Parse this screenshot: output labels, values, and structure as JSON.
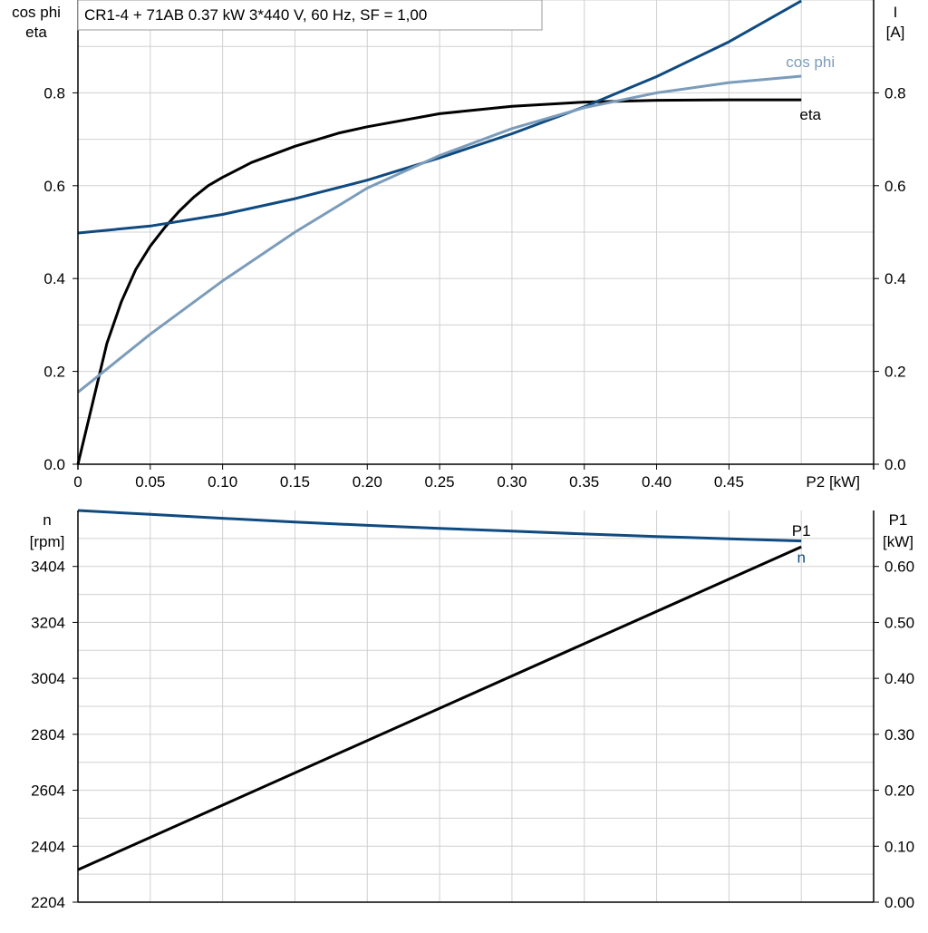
{
  "header": {
    "title": "CR1-4 + 71AB   0.37 kW   3*440 V, 60 Hz, SF = 1,00"
  },
  "colors": {
    "eta": "#000000",
    "current": "#0f4a80",
    "cos_phi": "#7b9cba",
    "speed": "#0f4a80",
    "p1": "#000000",
    "grid": "#d0d0d0",
    "axis": "#000000"
  },
  "chart_data": [
    {
      "type": "line",
      "title": "CR1-4 + 71AB   0.37 kW   3*440 V, 60 Hz, SF = 1,00",
      "xlabel": "P2 [kW]",
      "ylabel": "cos phi\neta",
      "y2label": "I\n[A]",
      "xlim": [
        0,
        0.55
      ],
      "ylim": [
        0,
        1.0
      ],
      "y2lim": [
        0,
        1.0
      ],
      "x_ticks": [
        "0",
        "0.05",
        "0.10",
        "0.15",
        "0.20",
        "0.25",
        "0.30",
        "0.35",
        "0.40",
        "0.45"
      ],
      "y_ticks": [
        "0.0",
        "0.2",
        "0.4",
        "0.6",
        "0.8"
      ],
      "y2_ticks": [
        "0.0",
        "0.2",
        "0.4",
        "0.6",
        "0.8"
      ],
      "grid": true,
      "series": [
        {
          "name": "eta",
          "axis": "left",
          "color": "#000000",
          "x": [
            0,
            0.01,
            0.02,
            0.03,
            0.04,
            0.05,
            0.06,
            0.07,
            0.08,
            0.09,
            0.1,
            0.12,
            0.15,
            0.18,
            0.2,
            0.25,
            0.3,
            0.35,
            0.4,
            0.45,
            0.5
          ],
          "y": [
            0.0,
            0.13,
            0.26,
            0.35,
            0.42,
            0.47,
            0.51,
            0.545,
            0.575,
            0.6,
            0.618,
            0.65,
            0.685,
            0.713,
            0.727,
            0.755,
            0.771,
            0.78,
            0.784,
            0.785,
            0.785
          ]
        },
        {
          "name": "I",
          "axis": "right",
          "color": "#0f4a80",
          "x": [
            0,
            0.05,
            0.1,
            0.15,
            0.2,
            0.25,
            0.3,
            0.35,
            0.4,
            0.45,
            0.5
          ],
          "y": [
            0.498,
            0.513,
            0.538,
            0.572,
            0.612,
            0.66,
            0.712,
            0.77,
            0.835,
            0.91,
            0.998
          ]
        },
        {
          "name": "cos phi",
          "axis": "left",
          "color": "#7b9cba",
          "x": [
            0,
            0.05,
            0.1,
            0.15,
            0.2,
            0.25,
            0.3,
            0.35,
            0.4,
            0.45,
            0.5
          ],
          "y": [
            0.155,
            0.28,
            0.395,
            0.5,
            0.595,
            0.665,
            0.723,
            0.768,
            0.8,
            0.822,
            0.836
          ]
        }
      ]
    },
    {
      "type": "line",
      "xlabel": "",
      "ylabel": "n\n[rpm]",
      "y2label": "P1\n[kW]",
      "xlim": [
        0,
        0.55
      ],
      "ylim": [
        2204,
        3604
      ],
      "y2lim": [
        0,
        0.7
      ],
      "y_ticks": [
        "3404",
        "3204",
        "3004",
        "2804",
        "2604",
        "2404",
        "2204"
      ],
      "y2_ticks": [
        "0.60",
        "0.50",
        "0.40",
        "0.30",
        "0.20",
        "0.10",
        "0.00"
      ],
      "grid": true,
      "series": [
        {
          "name": "n",
          "axis": "left",
          "color": "#0f4a80",
          "x": [
            0,
            0.05,
            0.1,
            0.15,
            0.2,
            0.25,
            0.3,
            0.35,
            0.4,
            0.45,
            0.5
          ],
          "y": [
            3604,
            3590,
            3576,
            3563,
            3551,
            3540,
            3530,
            3520,
            3511,
            3503,
            3495
          ]
        },
        {
          "name": "P1",
          "axis": "right",
          "color": "#000000",
          "x": [
            0,
            0.5
          ],
          "y": [
            0.058,
            0.635
          ]
        }
      ]
    }
  ]
}
